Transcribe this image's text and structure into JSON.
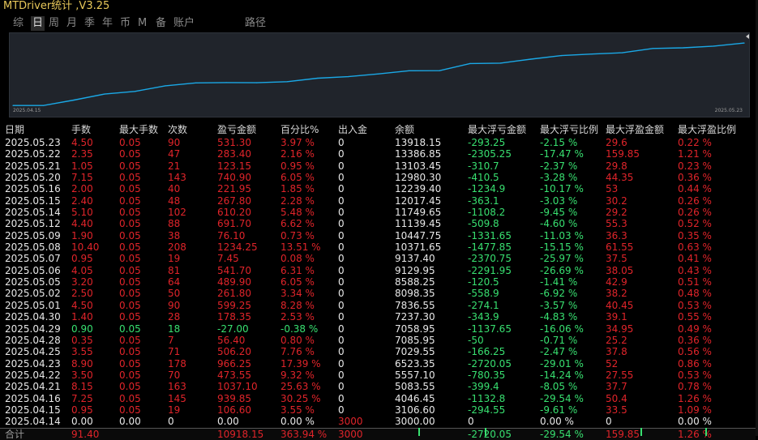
{
  "app_title": "MTDriver统计 ,V3.25",
  "menu": [
    {
      "label": "综",
      "active": false
    },
    {
      "label": "日",
      "active": true
    },
    {
      "label": "周",
      "active": false
    },
    {
      "label": "月",
      "active": false
    },
    {
      "label": "季",
      "active": false
    },
    {
      "label": "年",
      "active": false
    },
    {
      "label": "币",
      "active": false
    },
    {
      "label": "M",
      "active": false
    },
    {
      "label": "备",
      "active": false
    },
    {
      "label": "账户",
      "active": false
    },
    {
      "label": "路径",
      "active": false
    }
  ],
  "colors": {
    "profit": "#e0242a",
    "loss": "#38e070",
    "neutral": "#e8e8e8",
    "line": "#1aa8e6"
  },
  "chart_data": {
    "type": "line",
    "x_start_label": "2025.04.15",
    "x_end_label": "2025.05.23",
    "series": [
      {
        "values": [
          3106.6,
          3106.6,
          4046.45,
          5083.55,
          5557.1,
          6523.35,
          7029.55,
          7085.95,
          7058.95,
          7237.3,
          7836.55,
          8098.35,
          8588.25,
          9129.95,
          9137.4,
          10371.65,
          10447.75,
          11139.45,
          11749.65,
          12017.45,
          12239.4,
          12980.3,
          13103.45,
          13386.85,
          13918.15
        ]
      }
    ],
    "ylim": [
      3000,
      14500
    ]
  },
  "table": {
    "headers": [
      "日期",
      "手数",
      "最大手数",
      "次数",
      "盈亏金额",
      "百分比%",
      "出入金",
      "余额",
      "最大浮亏金额",
      "最大浮亏比例",
      "最大浮盈金额",
      "最大浮盈比例"
    ],
    "rows": [
      {
        "cells": [
          "2025.05.23",
          "4.50",
          "0.05",
          "90",
          "531.30",
          "3.97 %",
          "0",
          "13918.15",
          "-293.25",
          "-2.15 %",
          "29.6",
          "0.22 %"
        ],
        "tone": "red"
      },
      {
        "cells": [
          "2025.05.22",
          "2.35",
          "0.05",
          "47",
          "283.40",
          "2.16 %",
          "0",
          "13386.85",
          "-2305.25",
          "-17.47 %",
          "159.85",
          "1.21 %"
        ],
        "tone": "red"
      },
      {
        "cells": [
          "2025.05.21",
          "1.05",
          "0.05",
          "21",
          "123.15",
          "0.95 %",
          "0",
          "13103.45",
          "-310.7",
          "-2.37 %",
          "29.8",
          "0.23 %"
        ],
        "tone": "red"
      },
      {
        "cells": [
          "2025.05.20",
          "7.15",
          "0.05",
          "143",
          "740.90",
          "6.05 %",
          "0",
          "12980.30",
          "-410.5",
          "-3.28 %",
          "44.35",
          "0.36 %"
        ],
        "tone": "red"
      },
      {
        "cells": [
          "2025.05.16",
          "2.00",
          "0.05",
          "40",
          "221.95",
          "1.85 %",
          "0",
          "12239.40",
          "-1234.9",
          "-10.17 %",
          "53",
          "0.44 %"
        ],
        "tone": "red"
      },
      {
        "cells": [
          "2025.05.15",
          "2.40",
          "0.05",
          "48",
          "267.80",
          "2.28 %",
          "0",
          "12017.45",
          "-363.1",
          "-3.03 %",
          "30.2",
          "0.26 %"
        ],
        "tone": "red"
      },
      {
        "cells": [
          "2025.05.14",
          "5.10",
          "0.05",
          "102",
          "610.20",
          "5.48 %",
          "0",
          "11749.65",
          "-1108.2",
          "-9.45 %",
          "29.2",
          "0.26 %"
        ],
        "tone": "red"
      },
      {
        "cells": [
          "2025.05.12",
          "4.40",
          "0.05",
          "88",
          "691.70",
          "6.62 %",
          "0",
          "11139.45",
          "-509.8",
          "-4.60 %",
          "55.3",
          "0.52 %"
        ],
        "tone": "red"
      },
      {
        "cells": [
          "2025.05.09",
          "1.90",
          "0.05",
          "38",
          "76.10",
          "0.73 %",
          "0",
          "10447.75",
          "-1331.65",
          "-11.03 %",
          "36.3",
          "0.35 %"
        ],
        "tone": "red"
      },
      {
        "cells": [
          "2025.05.08",
          "10.40",
          "0.05",
          "208",
          "1234.25",
          "13.51 %",
          "0",
          "10371.65",
          "-1477.85",
          "-15.15 %",
          "61.55",
          "0.63 %"
        ],
        "tone": "red"
      },
      {
        "cells": [
          "2025.05.07",
          "0.95",
          "0.05",
          "19",
          "7.45",
          "0.08 %",
          "0",
          "9137.40",
          "-2370.75",
          "-25.97 %",
          "37.5",
          "0.41 %"
        ],
        "tone": "red"
      },
      {
        "cells": [
          "2025.05.06",
          "4.05",
          "0.05",
          "81",
          "541.70",
          "6.31 %",
          "0",
          "9129.95",
          "-2291.95",
          "-26.69 %",
          "38.05",
          "0.43 %"
        ],
        "tone": "red"
      },
      {
        "cells": [
          "2025.05.05",
          "3.20",
          "0.05",
          "64",
          "489.90",
          "6.05 %",
          "0",
          "8588.25",
          "-120.5",
          "-1.41 %",
          "42.9",
          "0.51 %"
        ],
        "tone": "red"
      },
      {
        "cells": [
          "2025.05.02",
          "2.50",
          "0.05",
          "50",
          "261.80",
          "3.34 %",
          "0",
          "8098.35",
          "-558.9",
          "-6.92 %",
          "38.2",
          "0.48 %"
        ],
        "tone": "red"
      },
      {
        "cells": [
          "2025.05.01",
          "4.50",
          "0.05",
          "90",
          "599.25",
          "8.28 %",
          "0",
          "7836.55",
          "-274.1",
          "-3.57 %",
          "40.45",
          "0.53 %"
        ],
        "tone": "red"
      },
      {
        "cells": [
          "2025.04.30",
          "1.40",
          "0.05",
          "28",
          "178.35",
          "2.53 %",
          "0",
          "7237.30",
          "-343.9",
          "-4.83 %",
          "39.1",
          "0.55 %"
        ],
        "tone": "red"
      },
      {
        "cells": [
          "2025.04.29",
          "0.90",
          "0.05",
          "18",
          "-27.00",
          "-0.38 %",
          "0",
          "7058.95",
          "-1137.65",
          "-16.06 %",
          "34.95",
          "0.49 %"
        ],
        "tone": "green"
      },
      {
        "cells": [
          "2025.04.28",
          "0.35",
          "0.05",
          "7",
          "56.40",
          "0.80 %",
          "0",
          "7085.95",
          "-50",
          "-0.71 %",
          "25.2",
          "0.36 %"
        ],
        "tone": "red"
      },
      {
        "cells": [
          "2025.04.25",
          "3.55",
          "0.05",
          "71",
          "506.20",
          "7.76 %",
          "0",
          "7029.55",
          "-166.25",
          "-2.47 %",
          "37.8",
          "0.56 %"
        ],
        "tone": "red"
      },
      {
        "cells": [
          "2025.04.23",
          "8.90",
          "0.05",
          "178",
          "966.25",
          "17.39 %",
          "0",
          "6523.35",
          "-2720.05",
          "-29.01 %",
          "52",
          "0.86 %"
        ],
        "tone": "red"
      },
      {
        "cells": [
          "2025.04.22",
          "3.50",
          "0.05",
          "70",
          "473.55",
          "9.32 %",
          "0",
          "5557.10",
          "-780.35",
          "-14.24 %",
          "27.55",
          "0.53 %"
        ],
        "tone": "red"
      },
      {
        "cells": [
          "2025.04.21",
          "8.15",
          "0.05",
          "163",
          "1037.10",
          "25.63 %",
          "0",
          "5083.55",
          "-399.4",
          "-8.05 %",
          "37.7",
          "0.78 %"
        ],
        "tone": "red"
      },
      {
        "cells": [
          "2025.04.16",
          "7.25",
          "0.05",
          "145",
          "939.85",
          "30.25 %",
          "0",
          "4046.45",
          "-1132.8",
          "-29.54 %",
          "50.4",
          "1.26 %"
        ],
        "tone": "red"
      },
      {
        "cells": [
          "2025.04.15",
          "0.95",
          "0.05",
          "19",
          "106.60",
          "3.55 %",
          "0",
          "3106.60",
          "-294.55",
          "-9.61 %",
          "33.5",
          "1.09 %"
        ],
        "tone": "red"
      },
      {
        "cells": [
          "2025.04.14",
          "0.00",
          "0.00",
          "0",
          "0.00",
          "0.00 %",
          "3000",
          "3000.00",
          "0",
          "0.00 %",
          "0",
          "0.00 %"
        ],
        "tone": "white"
      }
    ],
    "total": {
      "label": "合计",
      "cells": [
        "",
        "91.40",
        "",
        "",
        "10918.15",
        "363.94 %",
        "3000",
        "",
        "-2720.05",
        "-29.54 %",
        "159.85",
        "1.26 %"
      ]
    }
  }
}
